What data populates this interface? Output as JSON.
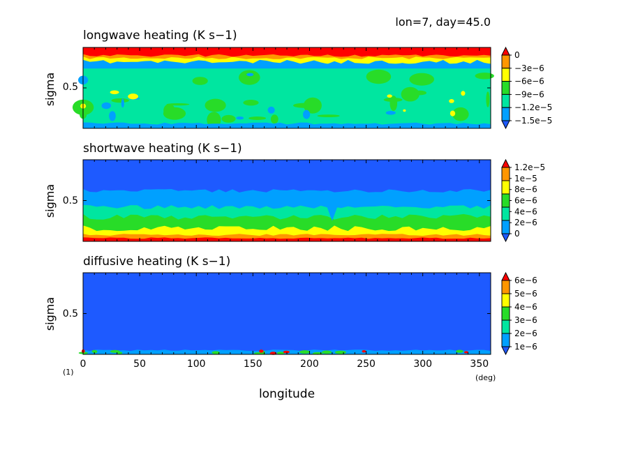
{
  "figure": {
    "header": "lon=7, day=45.0",
    "x_label": "longitude",
    "x_unit": "(deg)",
    "figure_number": "(1)",
    "x_ticks": [
      "0",
      "50",
      "100",
      "150",
      "200",
      "250",
      "300",
      "350"
    ]
  },
  "colors": {
    "dark_blue": "#1e5aff",
    "blue": "#00a0ff",
    "cyan": "#00e6a0",
    "green": "#28dc28",
    "yellow": "#ffff00",
    "orange": "#ff9600",
    "red": "#ff0000"
  },
  "panels": [
    {
      "title": "longwave heating (K s−1)",
      "y_label": "sigma",
      "y_tick": "0.5",
      "colorbar": {
        "labels": [
          "0",
          "−3e−6",
          "−6e−6",
          "−9e−6",
          "−1.2e−5",
          "−1.5e−5"
        ],
        "colors": [
          "#1e5aff",
          "#00a0ff",
          "#00e6a0",
          "#28dc28",
          "#ffff00",
          "#ff9600",
          "#ff0000"
        ]
      }
    },
    {
      "title": "shortwave heating (K s−1)",
      "y_label": "sigma",
      "y_tick": "0.5",
      "colorbar": {
        "labels": [
          "1.2e−5",
          "1e−5",
          "8e−6",
          "6e−6",
          "4e−6",
          "2e−6",
          "0"
        ],
        "colors": [
          "#1e5aff",
          "#00a0ff",
          "#00e6a0",
          "#28dc28",
          "#ffff00",
          "#ff9600",
          "#ff0000"
        ]
      }
    },
    {
      "title": "diffusive heating (K s−1)",
      "y_label": "sigma",
      "y_tick": "0.5",
      "colorbar": {
        "labels": [
          "6e−6",
          "5e−6",
          "4e−6",
          "3e−6",
          "2e−6",
          "1e−6"
        ],
        "colors": [
          "#1e5aff",
          "#00a0ff",
          "#00e6a0",
          "#28dc28",
          "#ffff00",
          "#ff9600",
          "#ff0000"
        ]
      }
    }
  ],
  "chart_data": [
    {
      "type": "heatmap",
      "title": "longwave heating (K s−1)",
      "xlabel": "longitude",
      "ylabel": "sigma",
      "xlim": [
        0,
        360
      ],
      "x_ticks": [
        0,
        50,
        100,
        150,
        200,
        250,
        300,
        350
      ],
      "y_ticks": [
        0.5
      ],
      "colorbar_levels": [
        0,
        -3e-06,
        -6e-06,
        -9e-06,
        -1.2e-05,
        -1.5e-05
      ],
      "bands": [
        {
          "sigma_top": 0.0,
          "sigma_bottom": 0.1,
          "class": "> 0 (red)"
        },
        {
          "sigma_top": 0.1,
          "sigma_bottom": 0.14,
          "class": "0 to -3e-6"
        },
        {
          "sigma_top": 0.14,
          "sigma_bottom": 0.2,
          "class": "-9e-6 to -1.5e-5 (mixed)"
        },
        {
          "sigma_top": 0.2,
          "sigma_bottom": 0.95,
          "class": "-9e-6 to -1.2e-5 with patches of -6e-6 and -1.5e-5"
        },
        {
          "sigma_top": 0.95,
          "sigma_bottom": 1.0,
          "class": "-1.2e-5 to -1.5e-5"
        }
      ]
    },
    {
      "type": "heatmap",
      "title": "shortwave heating (K s−1)",
      "xlabel": "longitude",
      "ylabel": "sigma",
      "xlim": [
        0,
        360
      ],
      "x_ticks": [
        0,
        50,
        100,
        150,
        200,
        250,
        300,
        350
      ],
      "y_ticks": [
        0.5
      ],
      "colorbar_levels": [
        1.2e-05,
        1e-05,
        8e-06,
        6e-06,
        4e-06,
        2e-06,
        0
      ],
      "bands": [
        {
          "sigma_top": 0.0,
          "sigma_bottom": 0.4,
          "class": "0 to 2e-6"
        },
        {
          "sigma_top": 0.4,
          "sigma_bottom": 0.55,
          "class": "2e-6 to 4e-6"
        },
        {
          "sigma_top": 0.55,
          "sigma_bottom": 0.7,
          "class": "4e-6 to 6e-6"
        },
        {
          "sigma_top": 0.7,
          "sigma_bottom": 0.85,
          "class": "6e-6 to 8e-6"
        },
        {
          "sigma_top": 0.85,
          "sigma_bottom": 0.92,
          "class": "8e-6 to 1e-5"
        },
        {
          "sigma_top": 0.92,
          "sigma_bottom": 0.96,
          "class": "1e-5 to 1.2e-5"
        },
        {
          "sigma_top": 0.96,
          "sigma_bottom": 1.0,
          "class": "> 1.2e-5"
        }
      ]
    },
    {
      "type": "heatmap",
      "title": "diffusive heating (K s−1)",
      "xlabel": "longitude",
      "ylabel": "sigma",
      "xlim": [
        0,
        360
      ],
      "x_ticks": [
        0,
        50,
        100,
        150,
        200,
        250,
        300,
        350
      ],
      "y_ticks": [
        0.5
      ],
      "colorbar_levels": [
        6e-06,
        5e-06,
        4e-06,
        3e-06,
        2e-06,
        1e-06
      ],
      "bands": [
        {
          "sigma_top": 0.0,
          "sigma_bottom": 0.96,
          "class": "< 1e-6"
        },
        {
          "sigma_top": 0.96,
          "sigma_bottom": 1.0,
          "class": "1e-6 to 3e-6, sparse patches > 6e-6"
        }
      ]
    }
  ]
}
